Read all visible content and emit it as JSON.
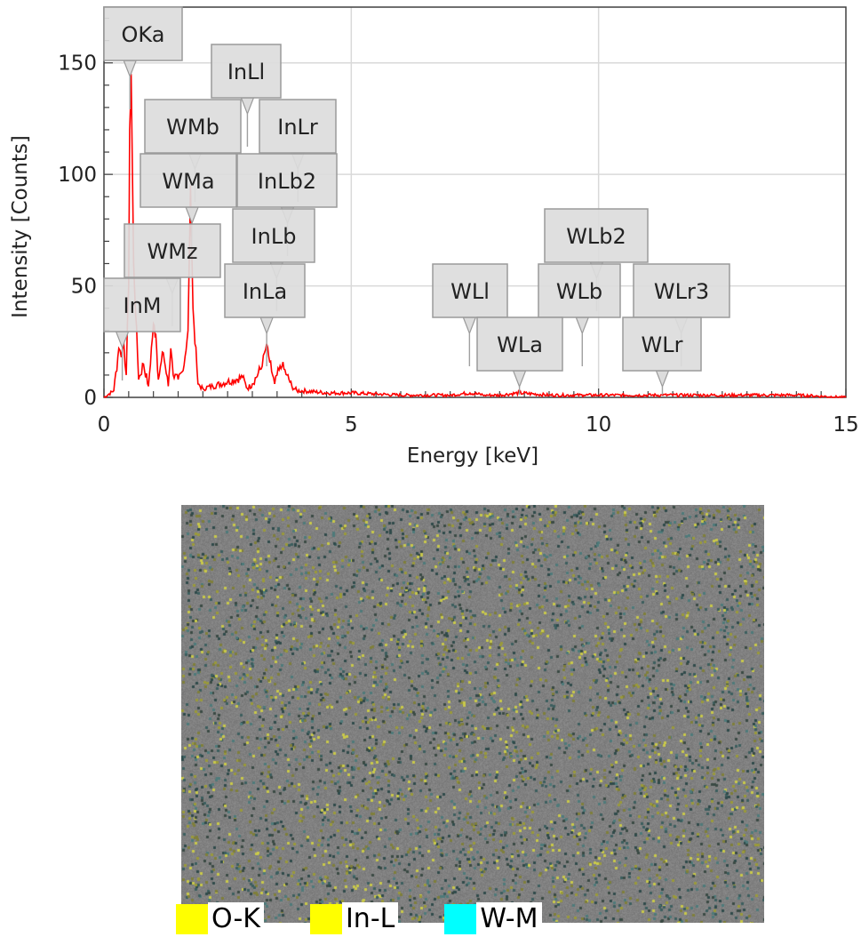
{
  "chart_data": {
    "type": "line",
    "xlabel": "Energy [keV]",
    "ylabel": "Intensity [Counts]",
    "xlim": [
      0,
      15
    ],
    "ylim": [
      0,
      175
    ],
    "xticks": [
      0,
      5,
      10,
      15
    ],
    "yticks": [
      0,
      50,
      100,
      150
    ],
    "grid": true,
    "series": [
      {
        "color": "#ff0000",
        "x": [
          0.0,
          0.2,
          0.3,
          0.35,
          0.4,
          0.45,
          0.5,
          0.52,
          0.55,
          0.6,
          0.7,
          0.8,
          0.9,
          1.0,
          1.05,
          1.1,
          1.2,
          1.3,
          1.35,
          1.4,
          1.5,
          1.6,
          1.7,
          1.75,
          1.8,
          1.9,
          2.0,
          2.2,
          2.5,
          2.8,
          2.9,
          3.0,
          3.2,
          3.29,
          3.35,
          3.45,
          3.5,
          3.6,
          3.7,
          3.8,
          3.9,
          4.0,
          4.5,
          5.0,
          6.0,
          7.0,
          7.4,
          7.7,
          8.0,
          8.4,
          9.0,
          9.7,
          10.0,
          11.0,
          11.3,
          11.7,
          12.0,
          13.0,
          14.0,
          15.0
        ],
        "y": [
          0,
          3,
          22,
          18,
          25,
          10,
          50,
          120,
          145,
          60,
          8,
          15,
          5,
          33,
          28,
          8,
          20,
          5,
          22,
          10,
          8,
          12,
          30,
          95,
          40,
          6,
          4,
          5,
          7,
          9,
          4,
          6,
          14,
          24,
          16,
          6,
          10,
          14,
          10,
          5,
          3,
          3,
          2,
          2,
          1,
          1,
          2,
          1,
          1,
          2,
          1,
          1,
          1,
          1,
          1,
          1,
          1,
          1,
          1,
          0
        ]
      }
    ],
    "peaks": [
      {
        "label": "OKa",
        "energy": 0.525
      },
      {
        "label": "InLl",
        "energy": 2.9
      },
      {
        "label": "WMb",
        "energy": 1.84
      },
      {
        "label": "InLr",
        "energy": 3.92
      },
      {
        "label": "WMa",
        "energy": 1.78
      },
      {
        "label": "InLb2",
        "energy": 3.71
      },
      {
        "label": "InLb",
        "energy": 3.49
      },
      {
        "label": "WMz",
        "energy": 1.38
      },
      {
        "label": "InLa",
        "energy": 3.29
      },
      {
        "label": "InM",
        "energy": 0.37
      },
      {
        "label": "WLl",
        "energy": 7.39
      },
      {
        "label": "WLb2",
        "energy": 9.96
      },
      {
        "label": "WLb",
        "energy": 9.67
      },
      {
        "label": "WLr3",
        "energy": 11.67
      },
      {
        "label": "WLa",
        "energy": 8.4
      },
      {
        "label": "WLr",
        "energy": 11.29
      }
    ]
  },
  "map": {
    "legend": [
      {
        "label": "O-K",
        "color": "#ffff00"
      },
      {
        "label": "In-L",
        "color": "#ffff00"
      },
      {
        "label": "W-M",
        "color": "#00ffff"
      }
    ]
  }
}
